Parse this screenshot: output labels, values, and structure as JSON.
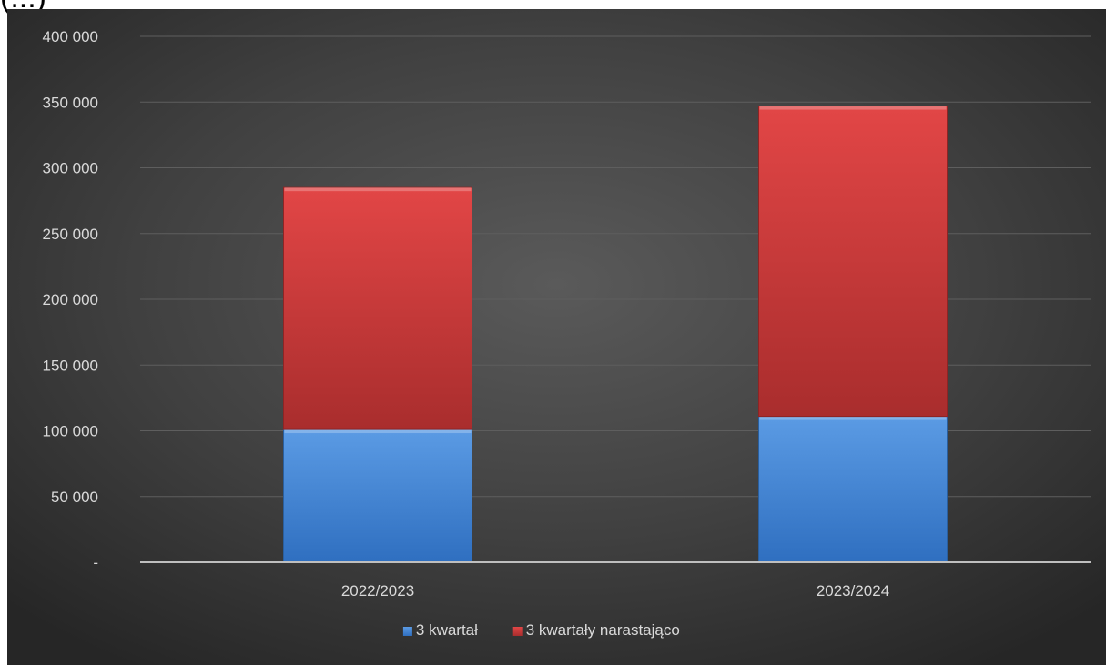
{
  "header_fragment": "(...) ",
  "chart_data": {
    "type": "bar",
    "stacked": true,
    "categories": [
      "2022/2023",
      "2023/2024"
    ],
    "series": [
      {
        "name": "3 kwartał",
        "values": [
          101000,
          111000
        ],
        "color": "#3f86d6"
      },
      {
        "name": "3 kwartały narastająco",
        "values": [
          184000,
          236000
        ],
        "color": "#d83b3b"
      }
    ],
    "ylim": [
      0,
      400000
    ],
    "y_ticks": [
      0,
      50000,
      100000,
      150000,
      200000,
      250000,
      300000,
      350000,
      400000
    ],
    "y_tick_labels": [
      "-",
      "50 000",
      "100 000",
      "150 000",
      "200 000",
      "250 000",
      "300 000",
      "350 000",
      "400 000"
    ],
    "grid": true,
    "legend_position": "bottom",
    "background": "#3b3b3b",
    "text_color": "#d9d9d9"
  }
}
